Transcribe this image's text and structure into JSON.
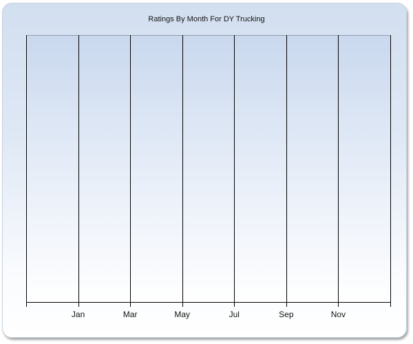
{
  "chart_data": {
    "type": "line",
    "title": "Ratings By Month For DY Trucking",
    "xlabel": "",
    "ylabel": "",
    "x_tick_labels": [
      "Jan",
      "Mar",
      "May",
      "Jul",
      "Sep",
      "Nov"
    ],
    "series": [],
    "grid": {
      "vertical": true,
      "horizontal": false
    },
    "legend": "none",
    "colors": {
      "background_top": "#d2dff0",
      "background_bottom": "#ffffff",
      "plot_top": "#c9d8ee",
      "gridline": "#000000"
    }
  }
}
